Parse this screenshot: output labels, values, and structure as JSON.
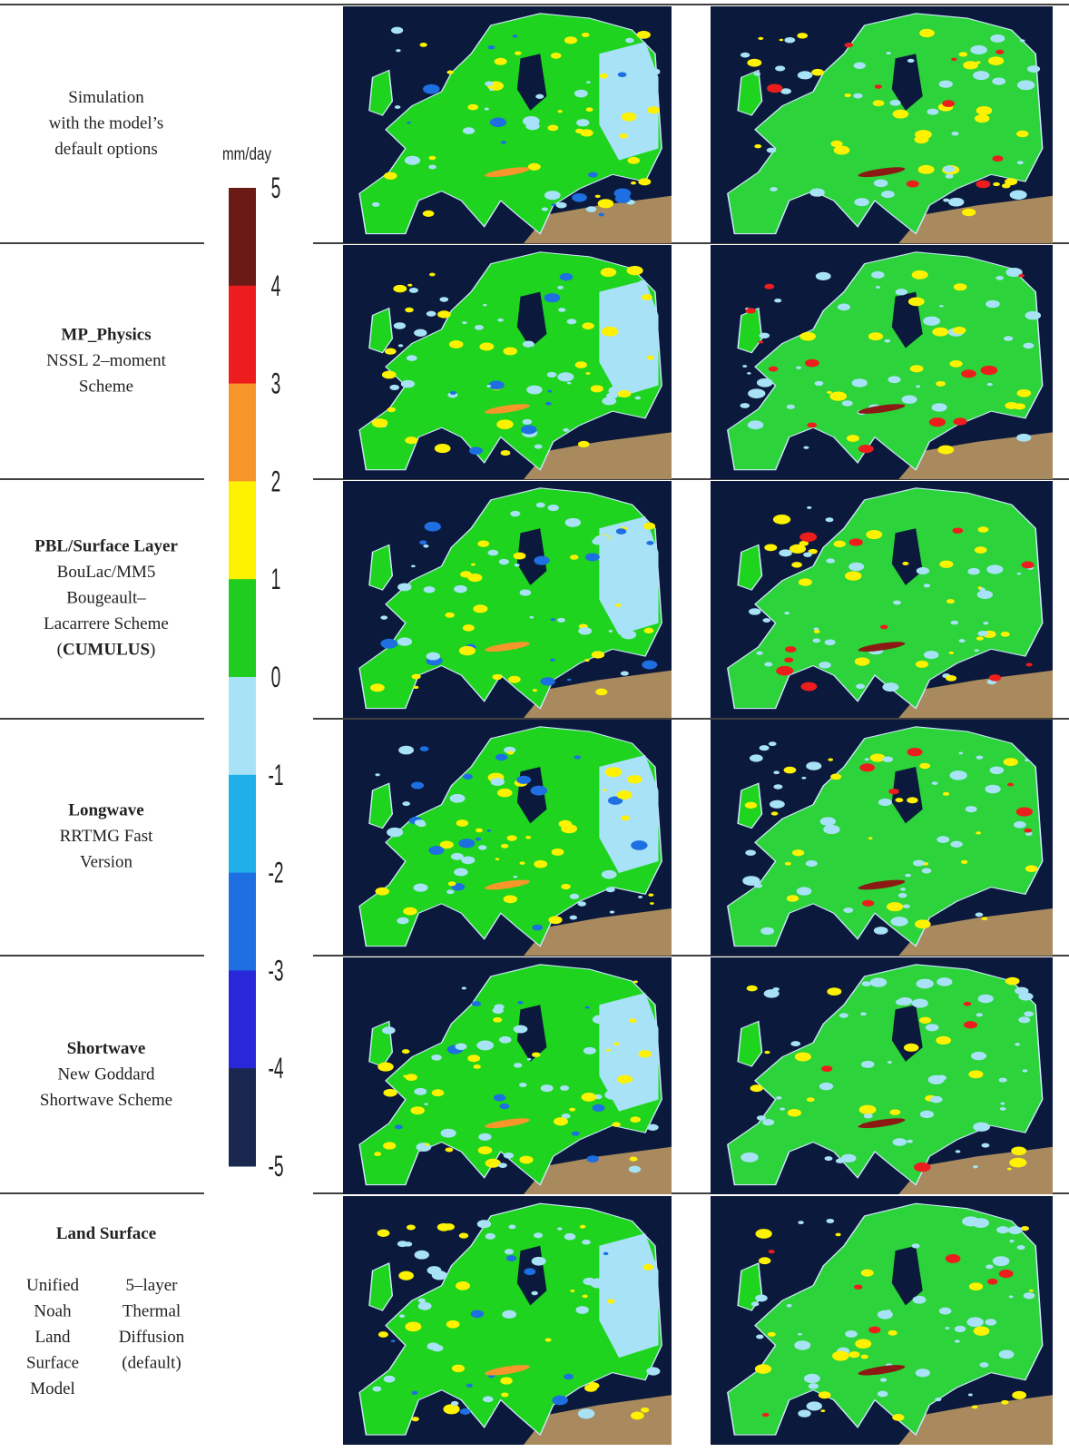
{
  "rows": [
    {
      "lines": [
        "Simulation",
        "with the model’s",
        "default options"
      ]
    },
    {
      "title": "MP_Physics",
      "lines": [
        "NSSL 2–moment",
        "Scheme"
      ]
    },
    {
      "title": "PBL/Surface Layer",
      "lines": [
        "BouLac/MM5",
        "Bougeault–",
        "Lacarrere Scheme"
      ],
      "note": [
        "(",
        "CUMULUS",
        ")"
      ]
    },
    {
      "title": "Longwave",
      "lines": [
        "RRTMG Fast",
        "Version"
      ]
    },
    {
      "title": "Shortwave",
      "lines": [
        "New Goddard",
        "Shortwave Scheme"
      ]
    },
    {
      "title": "Land Surface",
      "left_lines": [
        "Unified",
        "Noah",
        "Land",
        "Surface",
        "Model"
      ],
      "right_lines": [
        "5–layer",
        "Thermal",
        "Diffusion",
        "(default)"
      ]
    }
  ],
  "colorbar": {
    "unit": "mm/day",
    "ticks": [
      5,
      4,
      3,
      2,
      1,
      0,
      -1,
      -2,
      -3,
      -4,
      -5
    ],
    "colors": [
      "#6b1b16",
      "#ee1d1d",
      "#f7972b",
      "#fff200",
      "#1fcc1f",
      "#a8e2f6",
      "#1fb0ea",
      "#1d6fe2",
      "#2828d8",
      "#1a284f"
    ]
  }
}
